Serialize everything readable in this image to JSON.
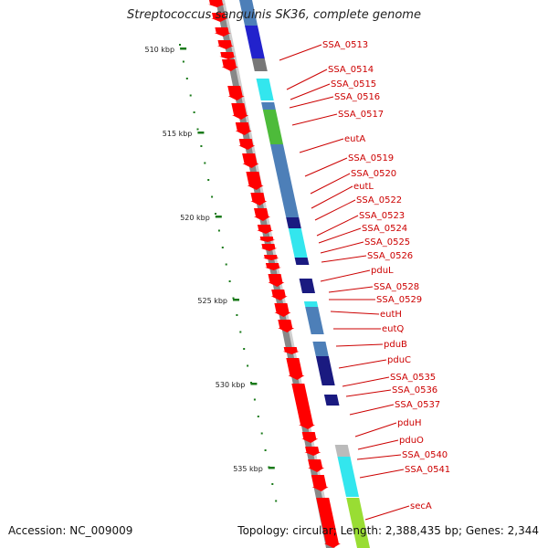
{
  "title": "Streptococcus sanguinis SK36, complete genome",
  "footer": {
    "accession_label": "Accession:",
    "accession": "NC_009009",
    "topology_label": "Topology:",
    "topology": "circular;",
    "length_label": "Length:",
    "length": "2,388,435 bp;",
    "genes_label": "Genes:",
    "genes": "2,344"
  },
  "scale_ticks": [
    "510 kbp",
    "515 kbp",
    "520 kbp",
    "525 kbp",
    "530 kbp",
    "535 kbp"
  ],
  "gene_labels": [
    "SSA_0513",
    "SSA_0514",
    "SSA_0515",
    "SSA_0516",
    "SSA_0517",
    "eutA",
    "SSA_0519",
    "SSA_0520",
    "eutL",
    "SSA_0522",
    "SSA_0523",
    "SSA_0524",
    "SSA_0525",
    "SSA_0526",
    "pduL",
    "SSA_0528",
    "SSA_0529",
    "eutH",
    "eutQ",
    "pduB",
    "pduC",
    "SSA_0535",
    "SSA_0536",
    "SSA_0537",
    "pduH",
    "pduO",
    "SSA_0540",
    "SSA_0541",
    "secA"
  ],
  "colors": {
    "gene_arrow": "#ff0000",
    "label": "#cc0000",
    "backbone": "#888888",
    "ruler_dots": "#1a7a1a",
    "cog_blue": "#4d7fb8",
    "cog_darkblue": "#1a1a80",
    "cog_cyan": "#33e6ee",
    "cog_green": "#4dbb3a",
    "cog_lightgreen": "#99dd33",
    "cog_grey": "#777777",
    "cog_lightgrey": "#bbbbbb",
    "cog_royal": "#2222cc"
  }
}
